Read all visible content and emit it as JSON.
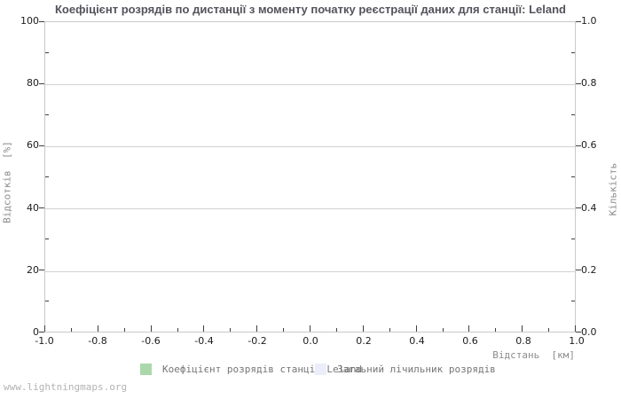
{
  "title": "Коефіцієнт розрядів по дистанції з моменту початку реєстрації даних для станції: Leland",
  "watermark": "www.lightningmaps.org",
  "axes": {
    "left": {
      "label": "Відсотків  [%]",
      "ticks": [
        "0",
        "20",
        "40",
        "60",
        "80",
        "100"
      ]
    },
    "right": {
      "label": "Кількість",
      "ticks": [
        "0.0",
        "0.2",
        "0.4",
        "0.6",
        "0.8",
        "1.0"
      ]
    },
    "bottom": {
      "label": "Відстань  [км]",
      "ticks": [
        "-1.0",
        "-0.8",
        "-0.6",
        "-0.4",
        "-0.2",
        "0.0",
        "0.2",
        "0.4",
        "0.6",
        "0.8",
        "1.0"
      ]
    }
  },
  "legend": [
    {
      "label": "Коефіцієнт розрядів станції Leland",
      "color": "#abd8ab"
    },
    {
      "label": "Загаьний лічильник розрядів",
      "color": "#ebedfa"
    }
  ],
  "colors": {
    "title": "#53535c",
    "axis_border": "#c9c9c9",
    "gridline": "#d2d2d2",
    "tick_text": "#1c1c1c",
    "axis_label_text": "#8c8c8c",
    "legend_text": "#757575",
    "watermark_text": "#b3b3b3",
    "background": "#ffffff"
  },
  "chart_data": {
    "type": "bar",
    "title": "Коефіцієнт розрядів по дистанції з моменту початку реєстрації даних для станції: Leland",
    "xlabel": "Відстань [км]",
    "ylabel_left": "Відсотків [%]",
    "ylabel_right": "Кількість",
    "xlim": [
      -1.0,
      1.0
    ],
    "ylim_left": [
      0,
      100
    ],
    "ylim_right": [
      0.0,
      1.0
    ],
    "x_major_step": 0.2,
    "grid": "horizontal-major-only",
    "legend_position": "bottom-center",
    "series": [
      {
        "name": "Коефіцієнт розрядів станції Leland",
        "color": "#abd8ab",
        "axis": "left",
        "x": [],
        "values": []
      },
      {
        "name": "Загаьний лічильник розрядів",
        "color": "#ebedfa",
        "axis": "right",
        "x": [],
        "values": []
      }
    ],
    "note": "empty plot — no data points rendered for this station"
  }
}
